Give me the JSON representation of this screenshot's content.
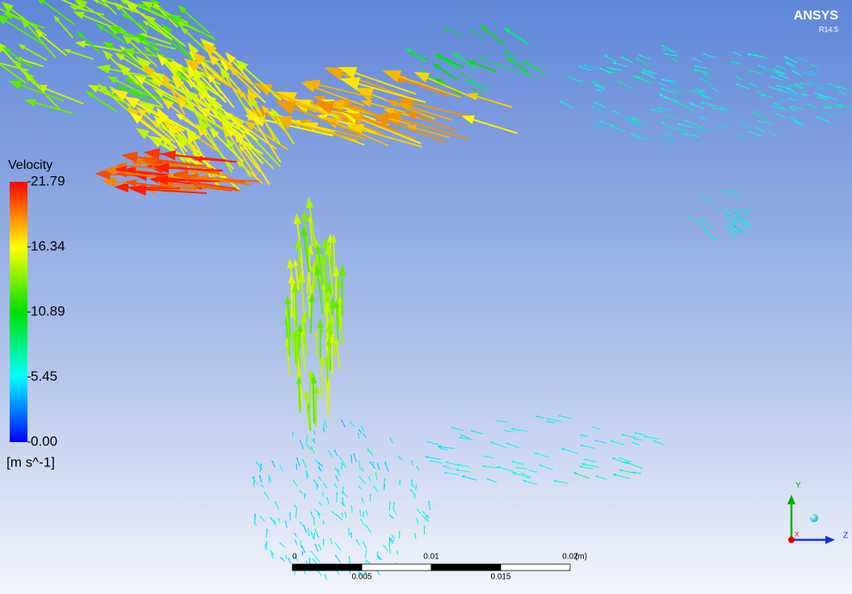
{
  "brand": {
    "name": "ANSYS",
    "version": "R14.5"
  },
  "legend": {
    "title": "Velocity",
    "ticks": [
      {
        "value": 21.79,
        "label": "21.79"
      },
      {
        "value": 16.34,
        "label": "16.34"
      },
      {
        "value": 10.89,
        "label": "10.89"
      },
      {
        "value": 5.45,
        "label": "5.45"
      },
      {
        "value": 0,
        "label": "0.00"
      }
    ],
    "unit": "[m s^-1]"
  },
  "scale_bar": {
    "top_ticks": [
      0,
      0.01,
      0.02
    ],
    "bottom_ticks": [
      0.005,
      0.015
    ],
    "unit": "(m)"
  },
  "triad": {
    "y": "Y",
    "z": "Z",
    "x": "X"
  }
}
